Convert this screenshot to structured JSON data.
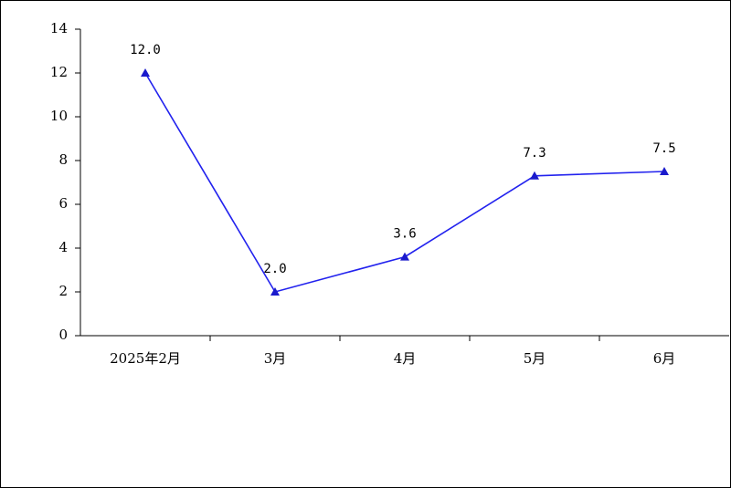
{
  "chart_data": {
    "type": "line",
    "categories": [
      "2025年2月",
      "3月",
      "4月",
      "5月",
      "6月"
    ],
    "series": [
      {
        "color": "#2222ee",
        "values": [
          12.0,
          2.0,
          3.6,
          7.3,
          7.5
        ],
        "value_labels": [
          "12.0",
          "2.0",
          "3.6",
          "7.3",
          "7.5"
        ]
      }
    ],
    "ylim": [
      0,
      14
    ],
    "yticks": [
      0,
      2,
      4,
      6,
      8,
      10,
      12,
      14
    ]
  }
}
